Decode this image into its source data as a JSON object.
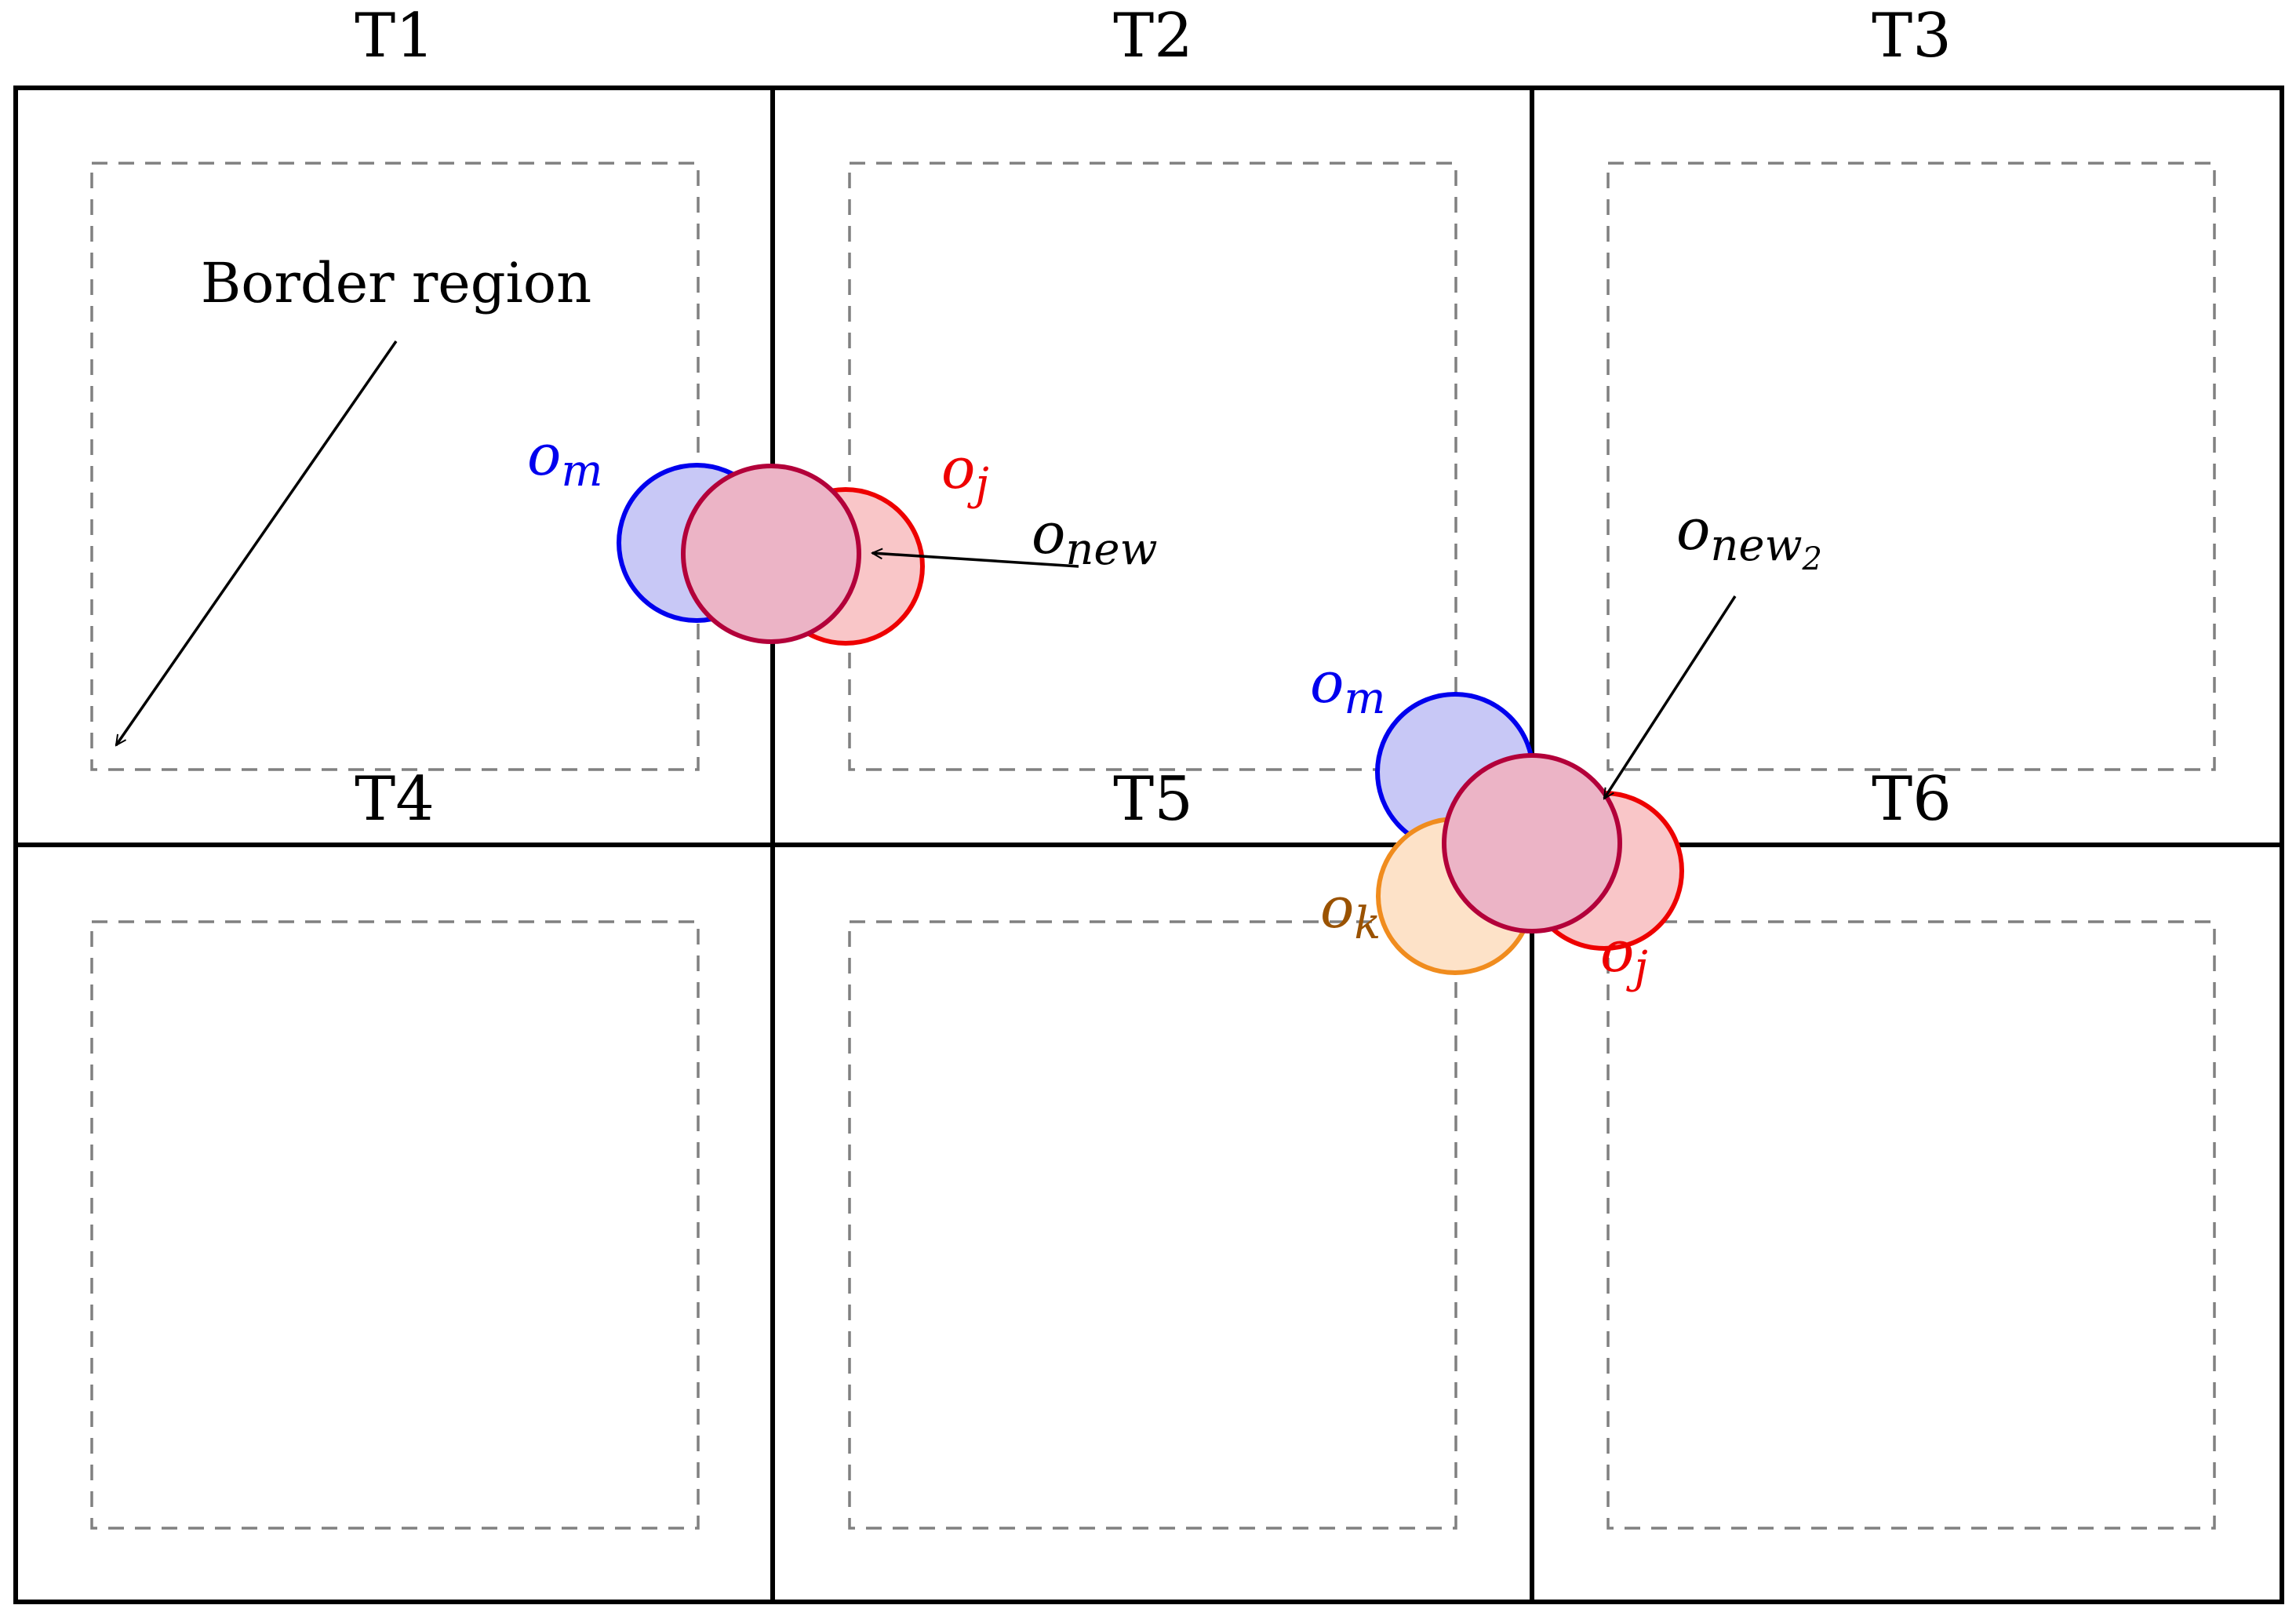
{
  "tiles": [
    "T1",
    "T2",
    "T3",
    "T4",
    "T5",
    "T6"
  ],
  "annotation": {
    "border_region": "Border region"
  },
  "merge_left": {
    "o_m": {
      "base": "o",
      "sub": "m"
    },
    "o_j": {
      "base": "o",
      "sub": "j"
    },
    "o_new": {
      "base": "o",
      "sub": "new"
    }
  },
  "merge_right": {
    "o_m": {
      "base": "o",
      "sub": "m"
    },
    "o_k": {
      "base": "o",
      "sub": "k"
    },
    "o_j": {
      "base": "o",
      "sub": "j"
    },
    "o_new2": {
      "base": "o",
      "sub": "new",
      "subsub": "2"
    }
  },
  "colors": {
    "tile_border": "#000000",
    "dashed_border": "#808080",
    "o_m_stroke": "#0000ee",
    "o_m_fill": "#c8c8f6",
    "o_j_stroke": "#ee0000",
    "o_j_fill": "#f9c6c8",
    "o_k_stroke": "#f08c1e",
    "o_k_fill": "#fde2c8",
    "o_k_label": "#9a5200",
    "o_new_stroke": "#b3003a",
    "o_new_fill": "#ecb4c6"
  }
}
